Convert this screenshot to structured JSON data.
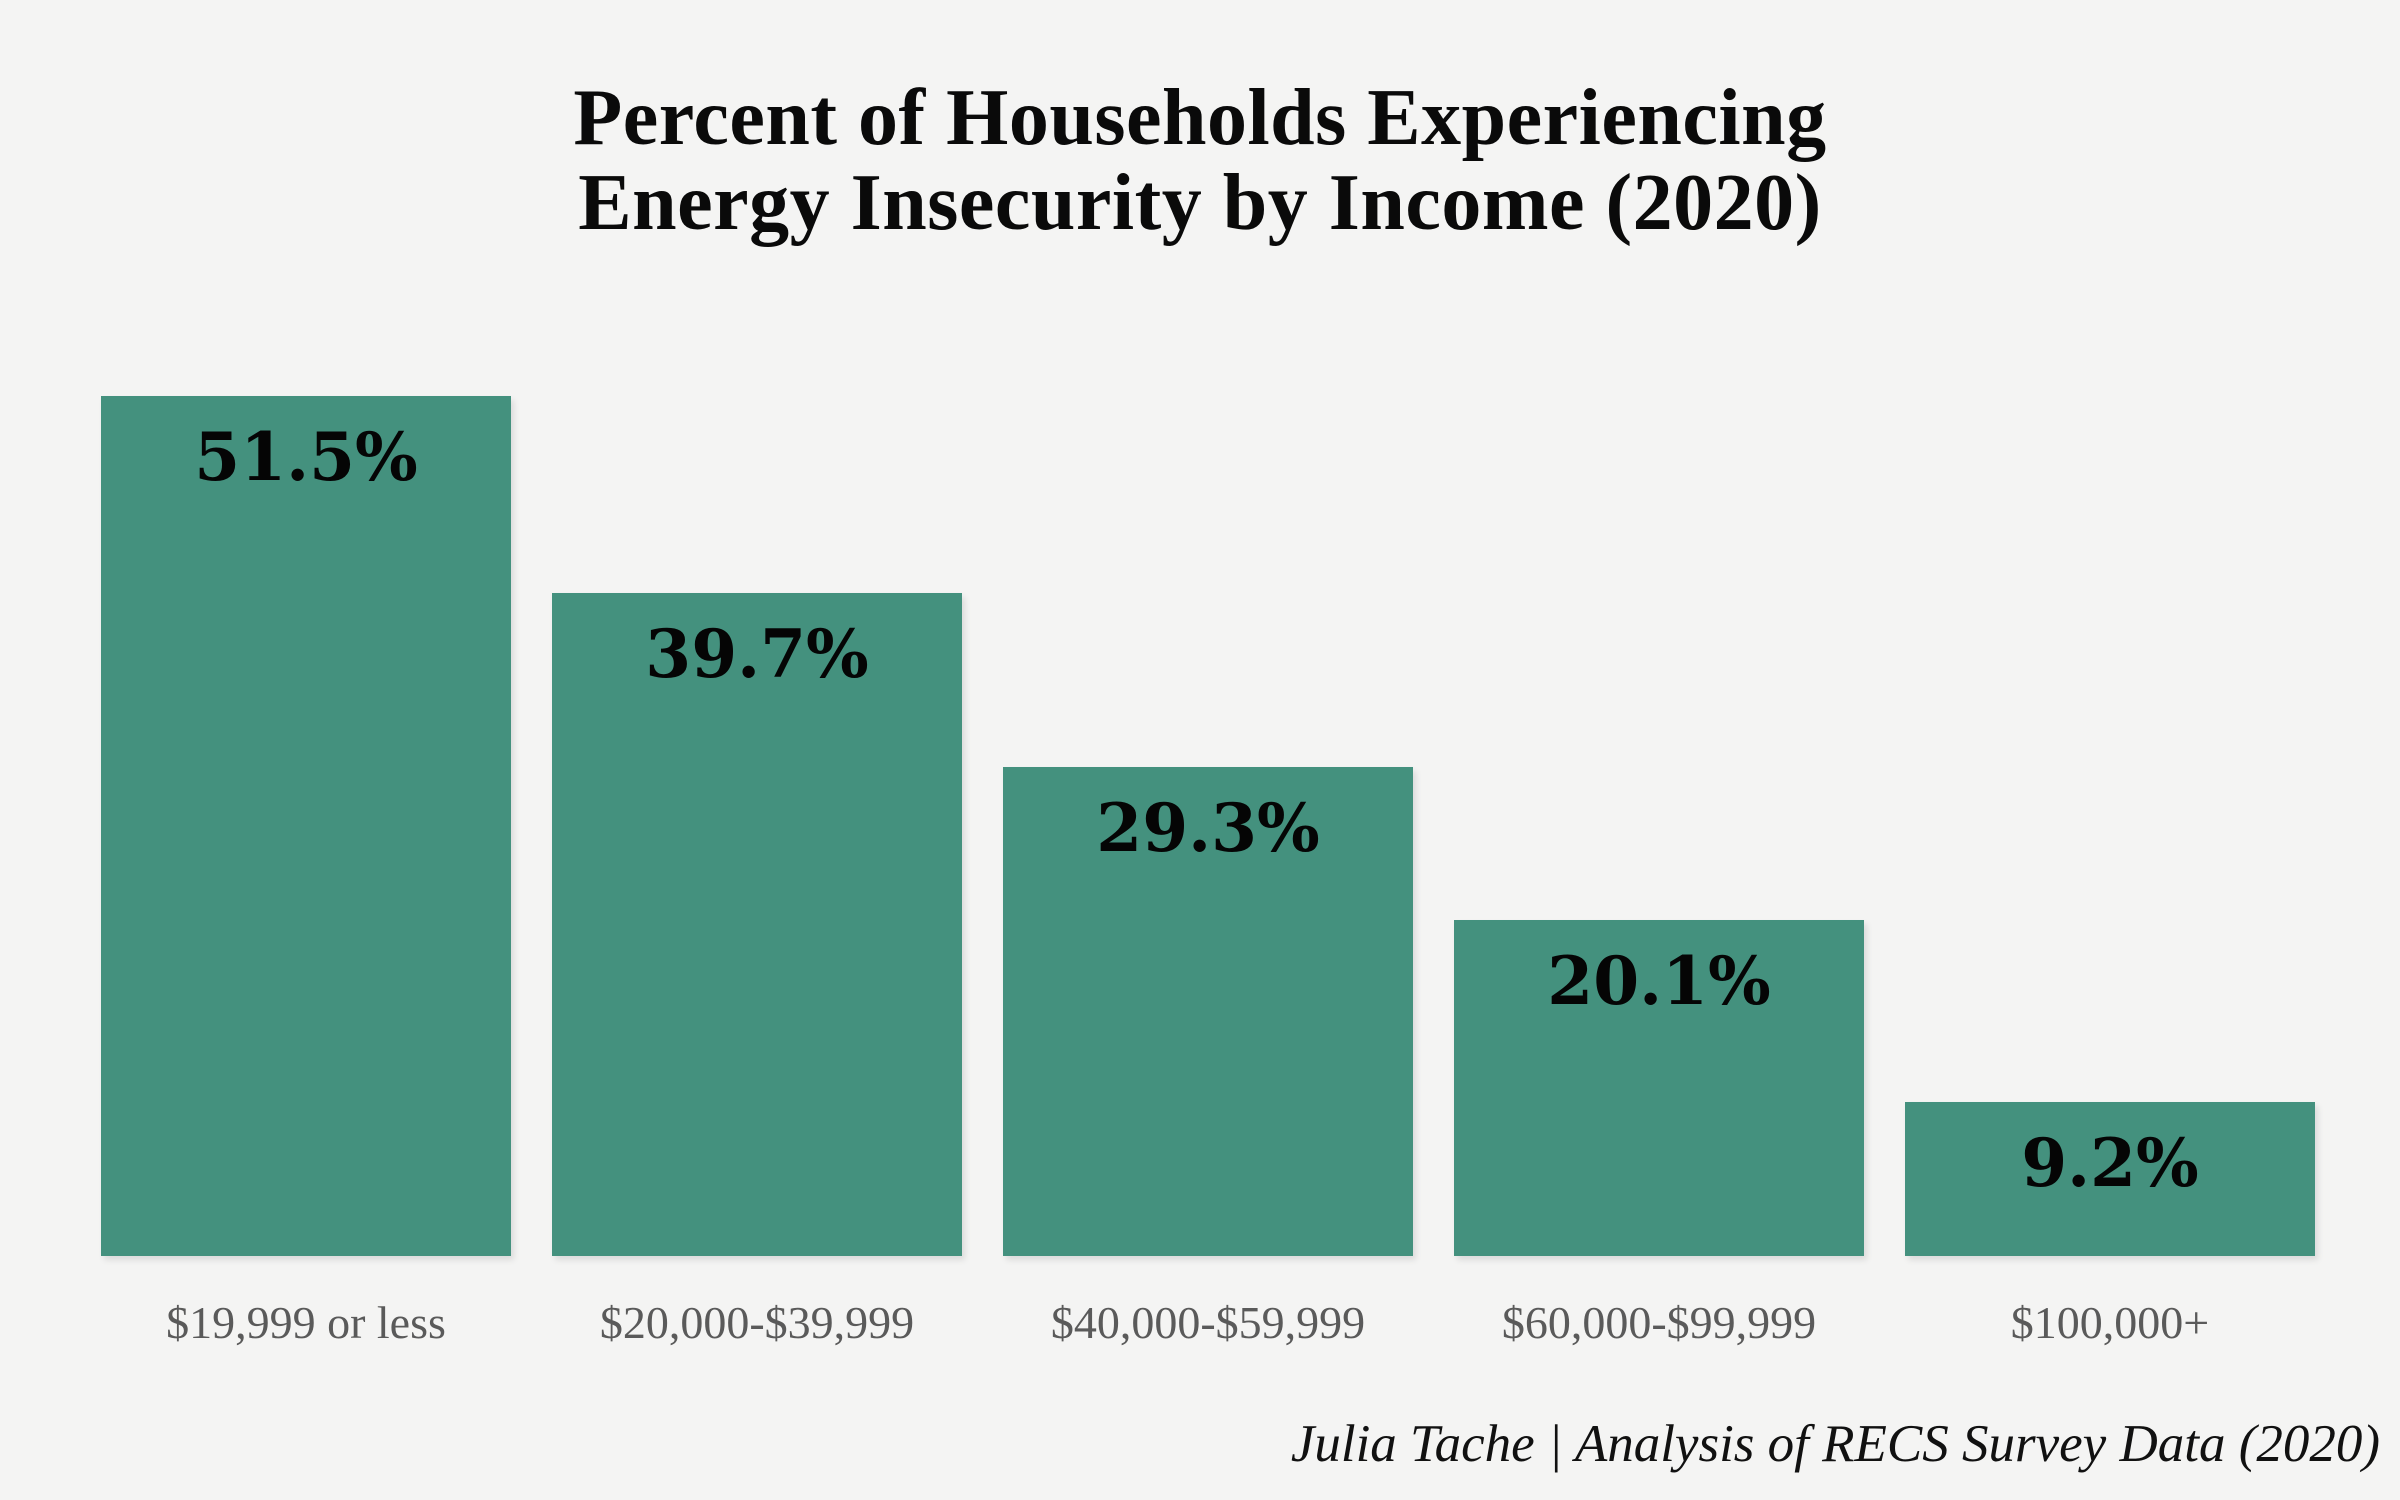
{
  "page": {
    "background_color": "#F4F4F3"
  },
  "title": {
    "line1": "Percent of Households Experiencing",
    "line2": "Energy Insecurity by Income (2020)"
  },
  "attribution": "Julia Tache | Analysis of RECS Survey Data (2020)",
  "colors": {
    "bar_fill": "#44917E",
    "title_text": "#0A0A0A",
    "value_label_text": "#050505",
    "category_label_text": "#5A5A5A",
    "attribution_text": "#111111"
  },
  "chart_data": {
    "type": "bar",
    "title": "Percent of Households Experiencing Energy Insecurity by Income (2020)",
    "categories": [
      "$19,999 or less",
      "$20,000-$39,999",
      "$40,000-$59,999",
      "$60,000-$99,999",
      "$100,000+"
    ],
    "values": [
      51.5,
      39.7,
      29.3,
      20.1,
      9.2
    ],
    "value_labels": [
      "51.5%",
      "39.7%",
      "29.3%",
      "20.1%",
      "9.2%"
    ],
    "xlabel": "",
    "ylabel": "",
    "ylim": [
      0,
      55
    ],
    "grid": false,
    "legend": false,
    "axis_lines": false,
    "annotations": "percentage value labeled inside the top of each bar"
  }
}
